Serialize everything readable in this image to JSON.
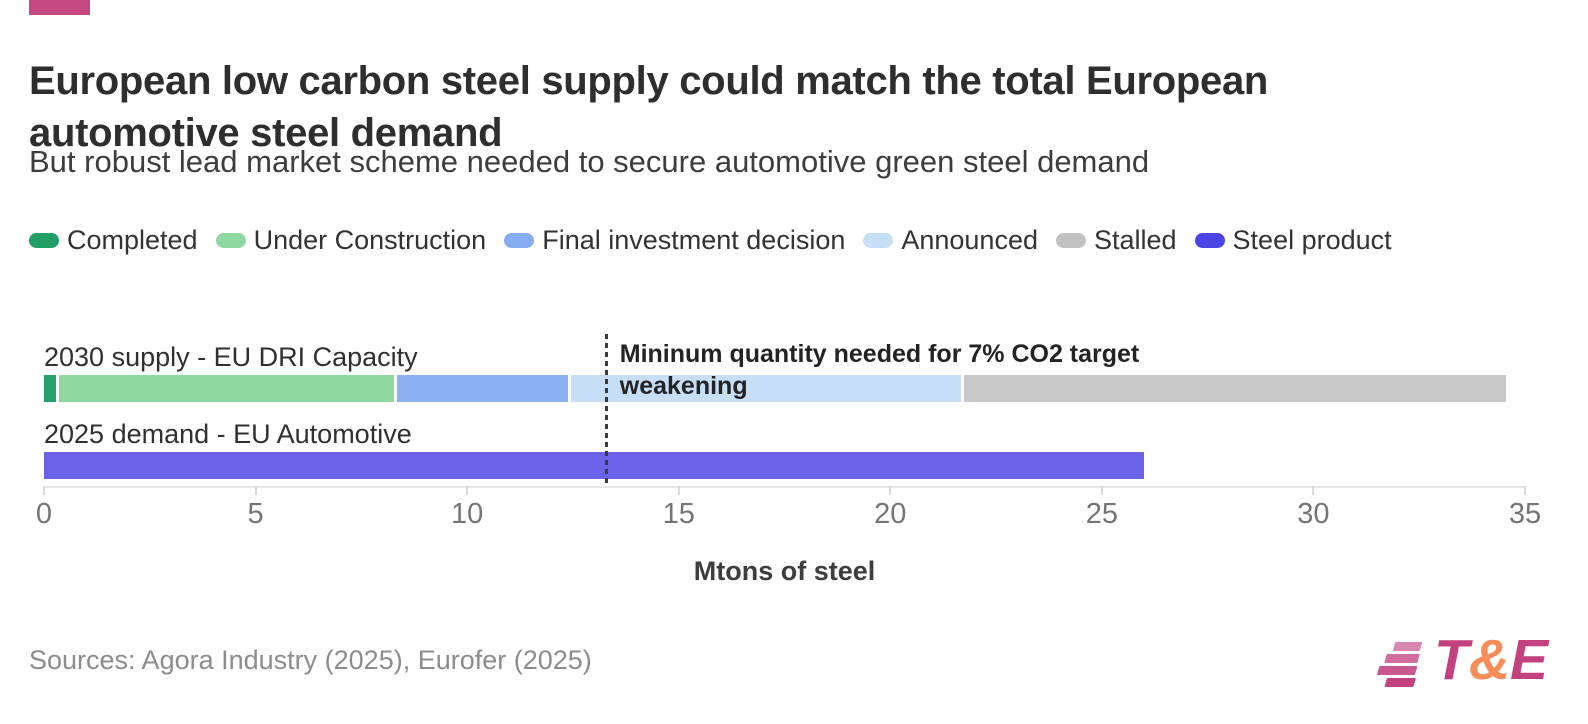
{
  "theme": {
    "accent_color": "#c4477f",
    "background": "#ffffff",
    "axis_color": "#e6e6e6",
    "tick_color": "#757575"
  },
  "header": {
    "title": "European low carbon steel supply could match the total European automotive steel demand",
    "subtitle": "But robust lead market scheme needed to secure automotive green steel demand"
  },
  "legend": {
    "items": [
      {
        "label": "Completed",
        "color": "#1f9e66"
      },
      {
        "label": "Under Construction",
        "color": "#8fd8a1"
      },
      {
        "label": "Final investment decision",
        "color": "#86adf2"
      },
      {
        "label": "Announced",
        "color": "#c6def6"
      },
      {
        "label": "Stalled",
        "color": "#c2c2c2"
      },
      {
        "label": "Steel product",
        "color": "#4c45e6"
      }
    ]
  },
  "chart_data": {
    "type": "bar",
    "orientation": "horizontal",
    "stacked": true,
    "title": "European low carbon steel supply could match the total European automotive steel demand",
    "subtitle": "But robust lead market scheme needed to secure automotive green steel demand",
    "xlabel": "Mtons of steel",
    "ylabel": "",
    "xlim": [
      0,
      35
    ],
    "xticks": [
      0,
      5,
      10,
      15,
      20,
      25,
      30,
      35
    ],
    "grid": false,
    "legend_position": "top",
    "categories": [
      "2030 supply - EU DRI Capacity",
      "2025 demand - EU Automotive"
    ],
    "rows": [
      {
        "label": "2030 supply - EU DRI Capacity",
        "total": 34.55,
        "segments": [
          {
            "name": "Completed",
            "value": 0.35,
            "color": "#27a06e"
          },
          {
            "name": "Under Construction",
            "value": 8.0,
            "color": "#8fd8a1"
          },
          {
            "name": "Final investment decision",
            "value": 4.1,
            "color": "#8bb1f3"
          },
          {
            "name": "Announced",
            "value": 9.3,
            "color": "#c6def6"
          },
          {
            "name": "Stalled",
            "value": 12.8,
            "color": "#c8c8c8"
          }
        ]
      },
      {
        "label": "2025 demand - EU Automotive",
        "total": 26.0,
        "segments": [
          {
            "name": "Steel product",
            "value": 26.0,
            "color": "#6c62ea"
          }
        ]
      }
    ],
    "annotation": {
      "value": 13.3,
      "text": "Mininum quantity needed for 7% CO2 target weakening"
    }
  },
  "footer": {
    "sources": "Sources: Agora Industry (2025), Eurofer (2025)"
  },
  "logo": {
    "text_t": "T",
    "text_amp": "&",
    "text_e": "E",
    "magenta": "#c2417e",
    "orange": "#fa8c5a",
    "stripe_colors": [
      "#d887b1",
      "#d06fa0",
      "#c9588f",
      "#c2417e"
    ],
    "stripe_widths": [
      27,
      33,
      38,
      29
    ],
    "stripe_offsets": [
      9,
      4,
      0,
      11
    ]
  }
}
